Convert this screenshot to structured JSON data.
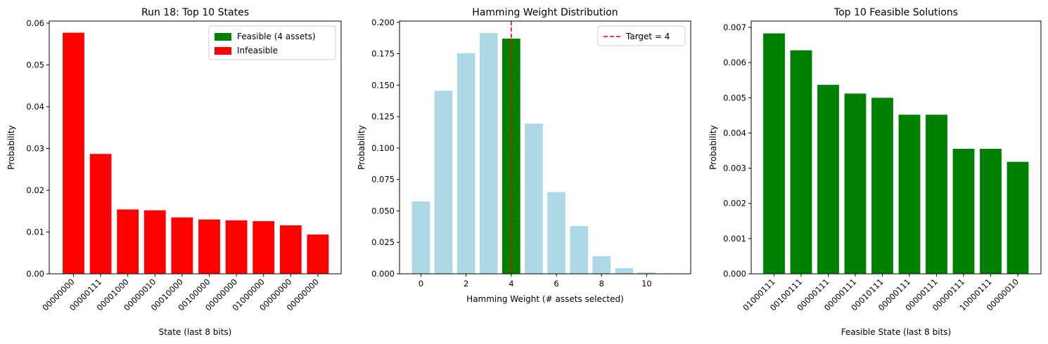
{
  "chart_data": [
    {
      "type": "bar",
      "title": "Run 18: Top 10 States",
      "xlabel": "State (last 8 bits)",
      "ylabel": "Probability",
      "categories": [
        "00000000",
        "00000111",
        "00001000",
        "00000010",
        "00010000",
        "00100000",
        "00000000",
        "01000000",
        "00000000",
        "00000000"
      ],
      "values": [
        0.0577,
        0.0287,
        0.0154,
        0.0152,
        0.0135,
        0.013,
        0.0128,
        0.0126,
        0.0116,
        0.0094
      ],
      "bar_colors": [
        "#ff0000",
        "#ff0000",
        "#ff0000",
        "#ff0000",
        "#ff0000",
        "#ff0000",
        "#ff0000",
        "#ff0000",
        "#ff0000",
        "#ff0000"
      ],
      "ylim": [
        0,
        0.0605
      ],
      "yticks": [
        0.0,
        0.01,
        0.02,
        0.03,
        0.04,
        0.05,
        0.06
      ],
      "ytick_labels": [
        "0.00",
        "0.01",
        "0.02",
        "0.03",
        "0.04",
        "0.05",
        "0.06"
      ],
      "legend": {
        "placement": "top-right",
        "entries": [
          {
            "label": "Feasible (4 assets)",
            "color": "#008000",
            "kind": "patch"
          },
          {
            "label": "Infeasible",
            "color": "#ff0000",
            "kind": "patch"
          }
        ]
      },
      "grid": false
    },
    {
      "type": "bar",
      "title": "Hamming Weight Distribution",
      "xlabel": "Hamming Weight (# assets selected)",
      "ylabel": "Probability",
      "x": [
        0,
        1,
        2,
        3,
        4,
        5,
        6,
        7,
        8,
        9,
        10,
        11
      ],
      "values": [
        0.0575,
        0.1455,
        0.1755,
        0.1915,
        0.187,
        0.1195,
        0.065,
        0.038,
        0.014,
        0.0045,
        0.001,
        0.0003
      ],
      "bar_colors": [
        "#add8e6",
        "#add8e6",
        "#add8e6",
        "#add8e6",
        "#008000",
        "#add8e6",
        "#add8e6",
        "#add8e6",
        "#add8e6",
        "#add8e6",
        "#add8e6",
        "#add8e6"
      ],
      "xlim": [
        -0.95,
        11.95
      ],
      "xticks": [
        0,
        2,
        4,
        6,
        8,
        10
      ],
      "ylim": [
        0,
        0.201
      ],
      "yticks": [
        0.0,
        0.025,
        0.05,
        0.075,
        0.1,
        0.125,
        0.15,
        0.175,
        0.2
      ],
      "ytick_labels": [
        "0.000",
        "0.025",
        "0.050",
        "0.075",
        "0.100",
        "0.125",
        "0.150",
        "0.175",
        "0.200"
      ],
      "vline": {
        "x": 4,
        "color": "#ff0000",
        "style": "dashed",
        "label": "Target = 4"
      },
      "legend": {
        "placement": "top-right",
        "entries": [
          {
            "label": "Target = 4",
            "color": "#ff0000",
            "kind": "dashed-line"
          }
        ]
      },
      "grid": false
    },
    {
      "type": "bar",
      "title": "Top 10 Feasible Solutions",
      "xlabel": "Feasible State (last 8 bits)",
      "ylabel": "Probability",
      "categories": [
        "01000111",
        "00100111",
        "00000111",
        "00000111",
        "00010111",
        "00000111",
        "00000111",
        "00000111",
        "10000111",
        "00000010"
      ],
      "values": [
        0.00683,
        0.00635,
        0.00537,
        0.00512,
        0.005,
        0.00452,
        0.00452,
        0.00355,
        0.00355,
        0.00318
      ],
      "bar_colors": [
        "#008000",
        "#008000",
        "#008000",
        "#008000",
        "#008000",
        "#008000",
        "#008000",
        "#008000",
        "#008000",
        "#008000"
      ],
      "ylim": [
        0,
        0.00718
      ],
      "yticks": [
        0.0,
        0.001,
        0.002,
        0.003,
        0.004,
        0.005,
        0.006,
        0.007
      ],
      "ytick_labels": [
        "0.000",
        "0.001",
        "0.002",
        "0.003",
        "0.004",
        "0.005",
        "0.006",
        "0.007"
      ],
      "grid": false
    }
  ]
}
